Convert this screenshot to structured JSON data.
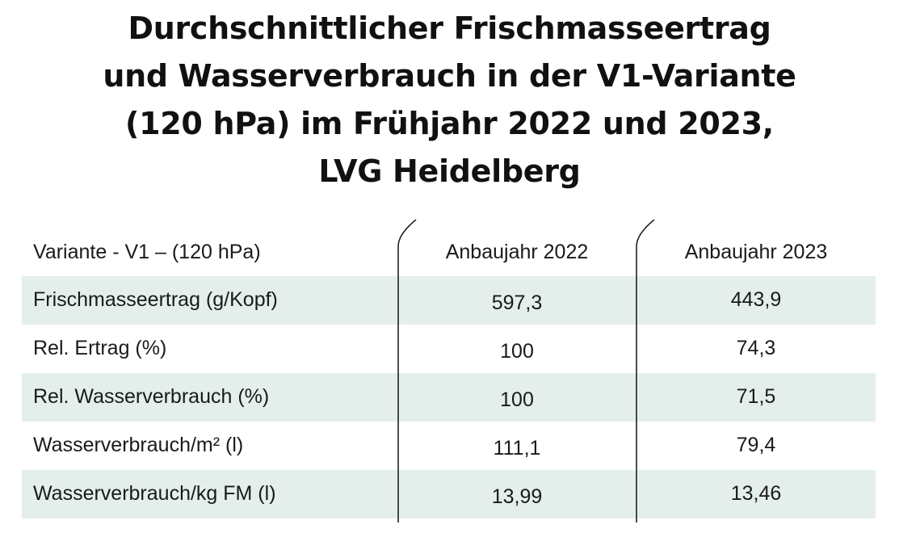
{
  "title": {
    "lines": [
      "Durchschnittlicher Frischmasseertrag",
      "und Wasserverbrauch in der V1-Variante",
      "(120 hPa) im Frühjahr 2022 und 2023,",
      "LVG Heidelberg"
    ]
  },
  "table": {
    "header": {
      "label": "Variante - V1 – (120 hPa)",
      "col_2022": "Anbaujahr 2022",
      "col_2023": "Anbaujahr 2023"
    },
    "rows": [
      {
        "label": "Frischmasseertrag (g/Kopf)",
        "v2022": "597,3",
        "v2023": "443,9"
      },
      {
        "label": "Rel. Ertrag (%)",
        "v2022": "100",
        "v2023": "74,3"
      },
      {
        "label": "Rel. Wasserverbrauch (%)",
        "v2022": "100",
        "v2023": "71,5"
      },
      {
        "label": "Wasserverbrauch/m² (l)",
        "v2022": "111,1",
        "v2023": "79,4"
      },
      {
        "label": "Wasserverbrauch/kg FM (l)",
        "v2022": "13,99",
        "v2023": "13,46"
      }
    ]
  },
  "colors": {
    "row_shade": "#e4efeb",
    "text": "#1a1a1a",
    "divider": "#222222"
  }
}
